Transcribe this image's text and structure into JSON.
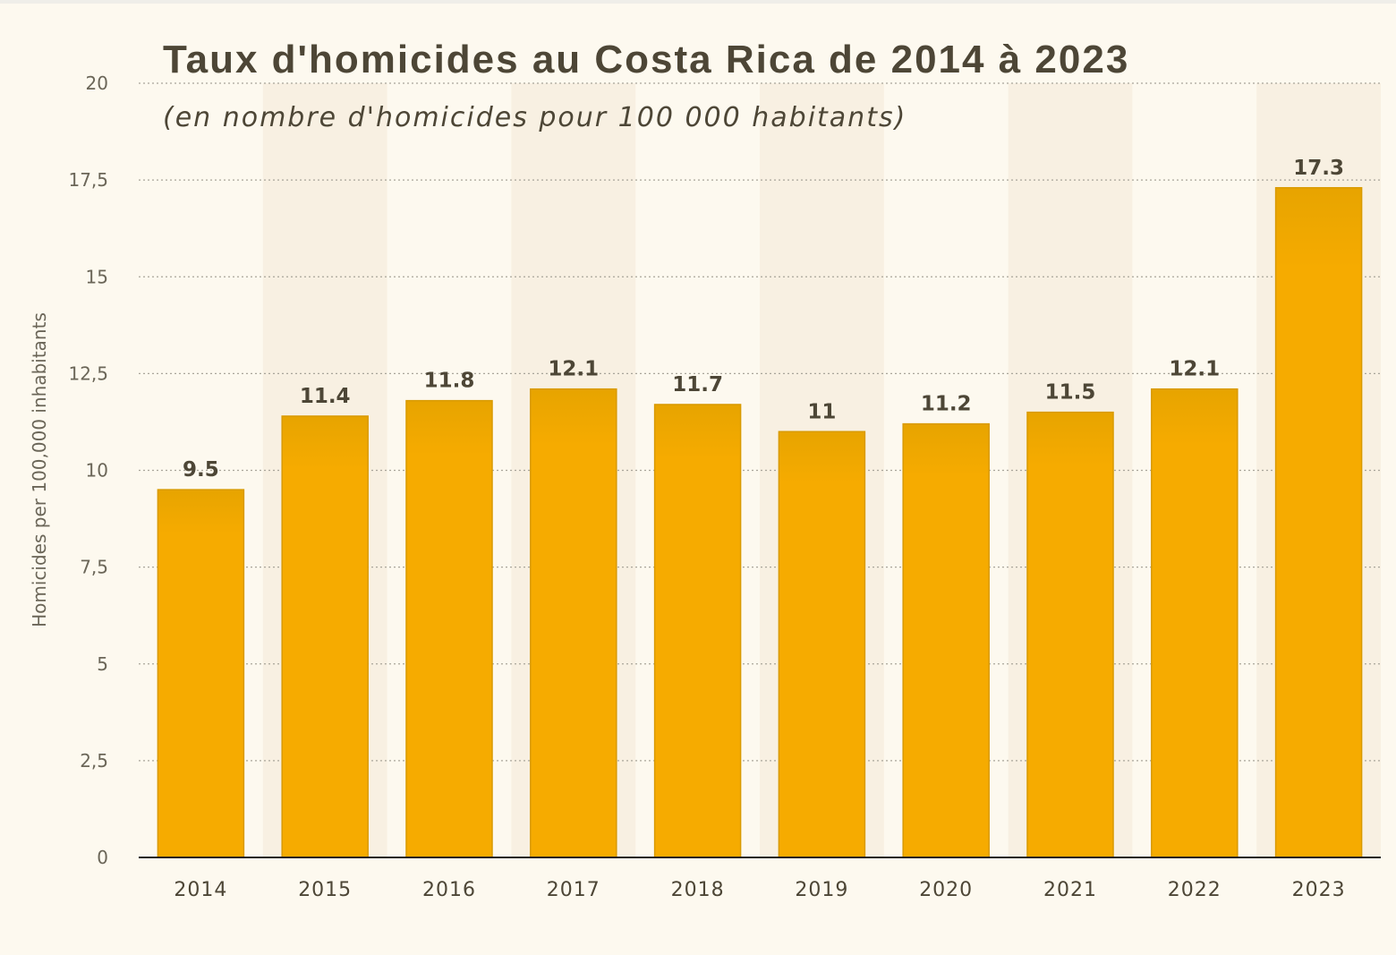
{
  "chart_data": {
    "type": "bar",
    "title": "Taux d'homicides au Costa Rica de 2014 à 2023",
    "subtitle": "(en nombre d'homicides pour 100 000 habitants)",
    "xlabel": "",
    "ylabel": "Homicides per 100,000 inhabitants",
    "categories": [
      "2014",
      "2015",
      "2016",
      "2017",
      "2018",
      "2019",
      "2020",
      "2021",
      "2022",
      "2023"
    ],
    "values": [
      9.5,
      11.4,
      11.8,
      12.1,
      11.7,
      11,
      11.2,
      11.5,
      12.1,
      17.3
    ],
    "data_labels": [
      "9.5",
      "11.4",
      "11.8",
      "12.1",
      "11.7",
      "11",
      "11.2",
      "11.5",
      "12.1",
      "17.3"
    ],
    "ylim": [
      0,
      20
    ],
    "yticks": [
      0,
      2.5,
      5,
      7.5,
      10,
      12.5,
      15,
      17.5,
      20
    ],
    "ytick_labels": [
      "0",
      "2,5",
      "5",
      "7,5",
      "10",
      "12,5",
      "15",
      "17,5",
      "20"
    ],
    "grid": true,
    "colors": {
      "bar": "#f6ab00",
      "bar_top": "#e7a400",
      "bar_stroke": "#d99a00",
      "grid": "#a9a59a",
      "axis": "#222222",
      "band": "#f8f0e2"
    }
  }
}
